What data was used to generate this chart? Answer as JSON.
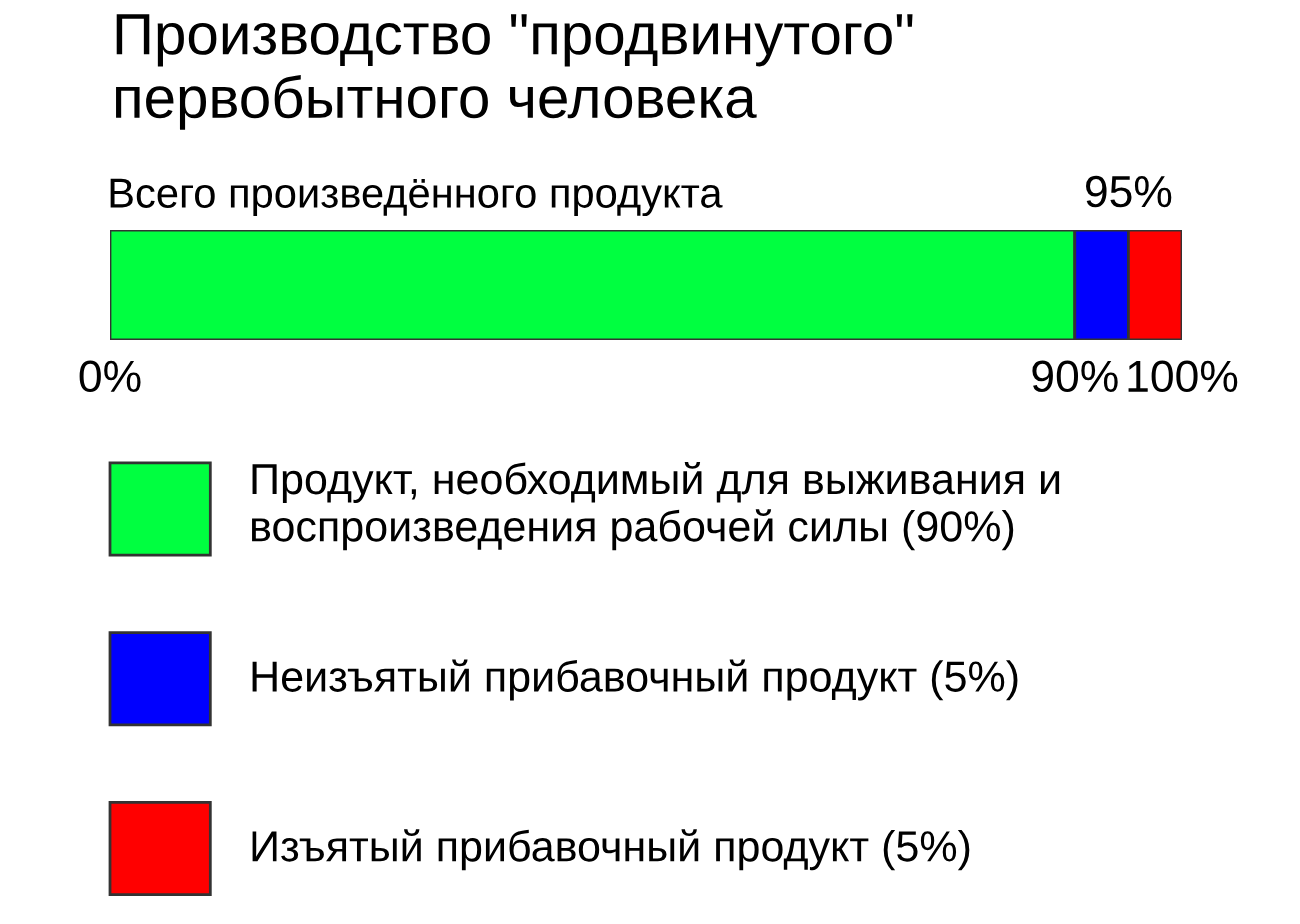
{
  "chart_data": {
    "type": "bar",
    "orientation": "horizontal",
    "stacked": true,
    "title": "Производство \"продвинутого\"\nпервобытного человека",
    "categories": [
      "Всего произведённого продукта"
    ],
    "series": [
      {
        "name": "Продукт, необходимый для выживания и\nвоспроизведения рабочей силы (90%)",
        "color": "#00ff40",
        "values": [
          90
        ]
      },
      {
        "name": "Неизъятый прибавочный продукт (5%)",
        "color": "#0000ff",
        "values": [
          5
        ]
      },
      {
        "name": "Изъятый прибавочный продукт (5%)",
        "color": "#ff0000",
        "values": [
          5
        ]
      }
    ],
    "xlim": [
      0,
      100
    ],
    "xticks": [
      {
        "value": 0,
        "label": "0%"
      },
      {
        "value": 90,
        "label": "90%"
      },
      {
        "value": 100,
        "label": "100%"
      }
    ],
    "annotations": [
      {
        "text": "95%",
        "x": 95,
        "y": "Всего произведённого продукта"
      }
    ],
    "legend": "bottom"
  }
}
